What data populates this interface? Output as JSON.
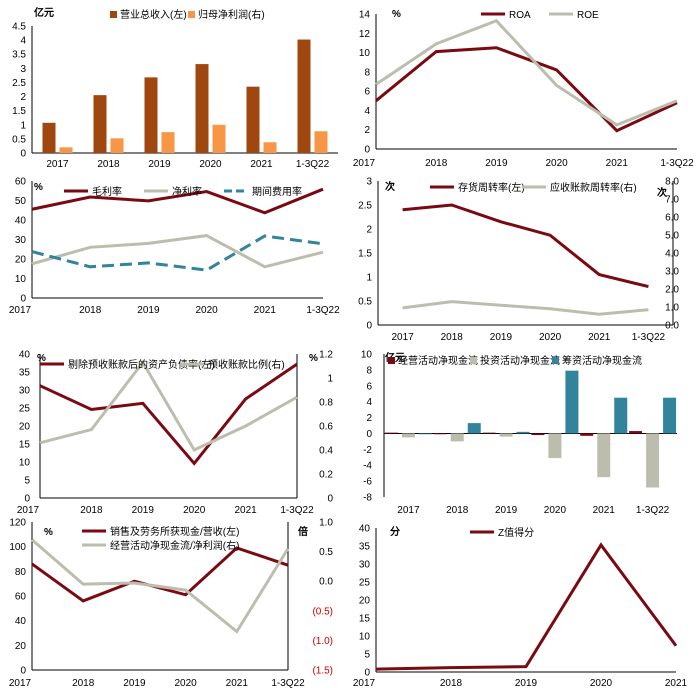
{
  "colors": {
    "rust": "#A0460F",
    "orange": "#F79646",
    "maroon": "#7A0A12",
    "gray": "#BDBDAE",
    "teal": "#31849B",
    "negative_tick": "#cc0000",
    "axis": "#000000"
  },
  "chart_data": [
    {
      "id": "revenue_profit",
      "type": "bar",
      "unit_left": "亿元",
      "categories": [
        "2017",
        "2018",
        "2019",
        "2020",
        "2021",
        "1-3Q22"
      ],
      "series": [
        {
          "name": "营业总收入(左)",
          "values": [
            1.07,
            2.05,
            2.68,
            3.15,
            2.35,
            4.02
          ],
          "color": "rust"
        },
        {
          "name": "归母净利润(右)",
          "values": [
            0.2,
            0.52,
            0.74,
            1.0,
            0.38,
            0.77
          ],
          "color": "orange"
        }
      ],
      "ylim": [
        0,
        4.5
      ],
      "yticks": [
        "0",
        "0.5",
        "1",
        "1.5",
        "2",
        "2.5",
        "3",
        "3.5",
        "4",
        "4.5"
      ]
    },
    {
      "id": "roa_roe",
      "type": "line",
      "unit_left": "%",
      "categories": [
        "2017",
        "2018",
        "2019",
        "2020",
        "2021",
        "1-3Q22"
      ],
      "series": [
        {
          "name": "ROA",
          "values": [
            5.0,
            10.1,
            10.5,
            8.2,
            1.9,
            4.8
          ],
          "color": "maroon"
        },
        {
          "name": "ROE",
          "values": [
            6.7,
            10.9,
            13.3,
            6.6,
            2.5,
            5.0
          ],
          "color": "gray"
        }
      ],
      "ylim": [
        0,
        14
      ],
      "yticks": [
        "0",
        "2",
        "4",
        "6",
        "8",
        "10",
        "12",
        "14"
      ]
    },
    {
      "id": "margins",
      "type": "line",
      "unit_left": "%",
      "categories": [
        "2017",
        "2018",
        "2019",
        "2020",
        "2021",
        "1-3Q22"
      ],
      "series": [
        {
          "name": "毛利率",
          "values": [
            45.5,
            51.8,
            49.8,
            54.6,
            43.7,
            55.8
          ],
          "color": "maroon"
        },
        {
          "name": "净利率",
          "values": [
            17.5,
            26.0,
            28.0,
            32.0,
            16.0,
            23.5
          ],
          "color": "gray"
        },
        {
          "name": "期间费用率",
          "values": [
            23.8,
            16.0,
            18.0,
            14.3,
            31.8,
            27.8
          ],
          "color": "teal",
          "dashed": true
        }
      ],
      "ylim": [
        0,
        60
      ],
      "yticks": [
        "0",
        "10",
        "20",
        "30",
        "40",
        "50",
        "60"
      ]
    },
    {
      "id": "turnover",
      "type": "line",
      "unit_left": "次",
      "unit_right": "次",
      "categories": [
        "2017",
        "2018",
        "2019",
        "2020",
        "2021",
        "1-3Q22"
      ],
      "series": [
        {
          "name": "存货周转率(左)",
          "values": [
            2.4,
            2.5,
            2.15,
            1.87,
            1.05,
            0.8
          ],
          "color": "maroon",
          "axis": "left"
        },
        {
          "name": "应收账款周转率(右)",
          "values": [
            0.95,
            1.3,
            1.1,
            0.9,
            0.6,
            0.85
          ],
          "color": "gray",
          "axis": "right"
        }
      ],
      "ylim": [
        0,
        3
      ],
      "ylim_right": [
        0,
        8
      ],
      "yticks": [
        "0",
        "0.5",
        "1",
        "1.5",
        "2",
        "2.5",
        "3"
      ],
      "yticks_right": [
        "0.0",
        "1.0",
        "2.0",
        "3.0",
        "4.0",
        "5.0",
        "6.0",
        "7.0",
        "8.0"
      ]
    },
    {
      "id": "debt_ratio",
      "type": "line",
      "unit_left": "%",
      "unit_right": "%",
      "categories": [
        "2017",
        "2018",
        "2019",
        "2020",
        "2021",
        "1-3Q22"
      ],
      "series": [
        {
          "name": "剔除预收账款后的资产负债率(左)",
          "values": [
            31.2,
            24.6,
            26.3,
            9.6,
            27.5,
            37.2
          ],
          "color": "maroon",
          "axis": "left"
        },
        {
          "name": "预收账款比例(右)",
          "values": [
            0.46,
            0.57,
            1.13,
            0.4,
            0.6,
            0.84
          ],
          "color": "gray",
          "axis": "right"
        }
      ],
      "ylim": [
        0,
        40
      ],
      "ylim_right": [
        0,
        1.2
      ],
      "yticks": [
        "0",
        "5",
        "10",
        "15",
        "20",
        "25",
        "30",
        "35",
        "40"
      ],
      "yticks_right": [
        "0",
        "0.2",
        "0.4",
        "0.6",
        "0.8",
        "1",
        "1.2"
      ]
    },
    {
      "id": "cash_flow",
      "type": "bar",
      "unit_left": "亿元",
      "categories": [
        "2017",
        "2018",
        "2019",
        "2020",
        "2021",
        "1-3Q22"
      ],
      "series": [
        {
          "name": "经营活动净现金流",
          "values": [
            0.1,
            -0.1,
            0.1,
            -0.2,
            -0.3,
            0.3
          ],
          "color": "maroon"
        },
        {
          "name": "投资活动净现金流",
          "values": [
            -0.5,
            -1.0,
            -0.4,
            -3.1,
            -5.5,
            -6.8
          ],
          "color": "gray"
        },
        {
          "name": "筹资活动净现金流",
          "values": [
            0.0,
            1.3,
            0.2,
            7.9,
            4.5,
            4.5
          ],
          "color": "teal"
        }
      ],
      "ylim": [
        -8,
        10
      ],
      "yticks": [
        "-8",
        "-6",
        "-4",
        "-2",
        "0",
        "2",
        "4",
        "6",
        "8",
        "10"
      ]
    },
    {
      "id": "cash_quality",
      "type": "line",
      "unit_left": "%",
      "unit_right": "倍",
      "categories": [
        "2017",
        "2018",
        "2019",
        "2020",
        "2021",
        "1-3Q22"
      ],
      "series": [
        {
          "name": "销售及劳务所获现金/营收(左)",
          "values": [
            86,
            56,
            72,
            61,
            99,
            85
          ],
          "color": "maroon",
          "axis": "left"
        },
        {
          "name": "经营活动净现金流/净利润(右)",
          "values": [
            0.7,
            -0.05,
            -0.03,
            -0.15,
            -0.85,
            0.55
          ],
          "color": "gray",
          "axis": "right"
        }
      ],
      "ylim": [
        0,
        120
      ],
      "ylim_right": [
        -1.5,
        1.0
      ],
      "yticks": [
        "0",
        "20",
        "40",
        "60",
        "80",
        "100",
        "120"
      ],
      "yticks_right": [
        "(1.5)",
        "(1.0)",
        "(0.5)",
        "0.0",
        "0.5",
        "1.0"
      ]
    },
    {
      "id": "z_score",
      "type": "line",
      "unit_left": "分",
      "categories": [
        "2017",
        "2018",
        "2019",
        "2020",
        "2021"
      ],
      "series": [
        {
          "name": "Z值得分",
          "values": [
            0.8,
            1.2,
            1.5,
            35.3,
            7.3
          ],
          "color": "maroon"
        }
      ],
      "ylim": [
        0,
        40
      ],
      "yticks": [
        "0",
        "5",
        "10",
        "15",
        "20",
        "25",
        "30",
        "35",
        "40"
      ]
    }
  ]
}
